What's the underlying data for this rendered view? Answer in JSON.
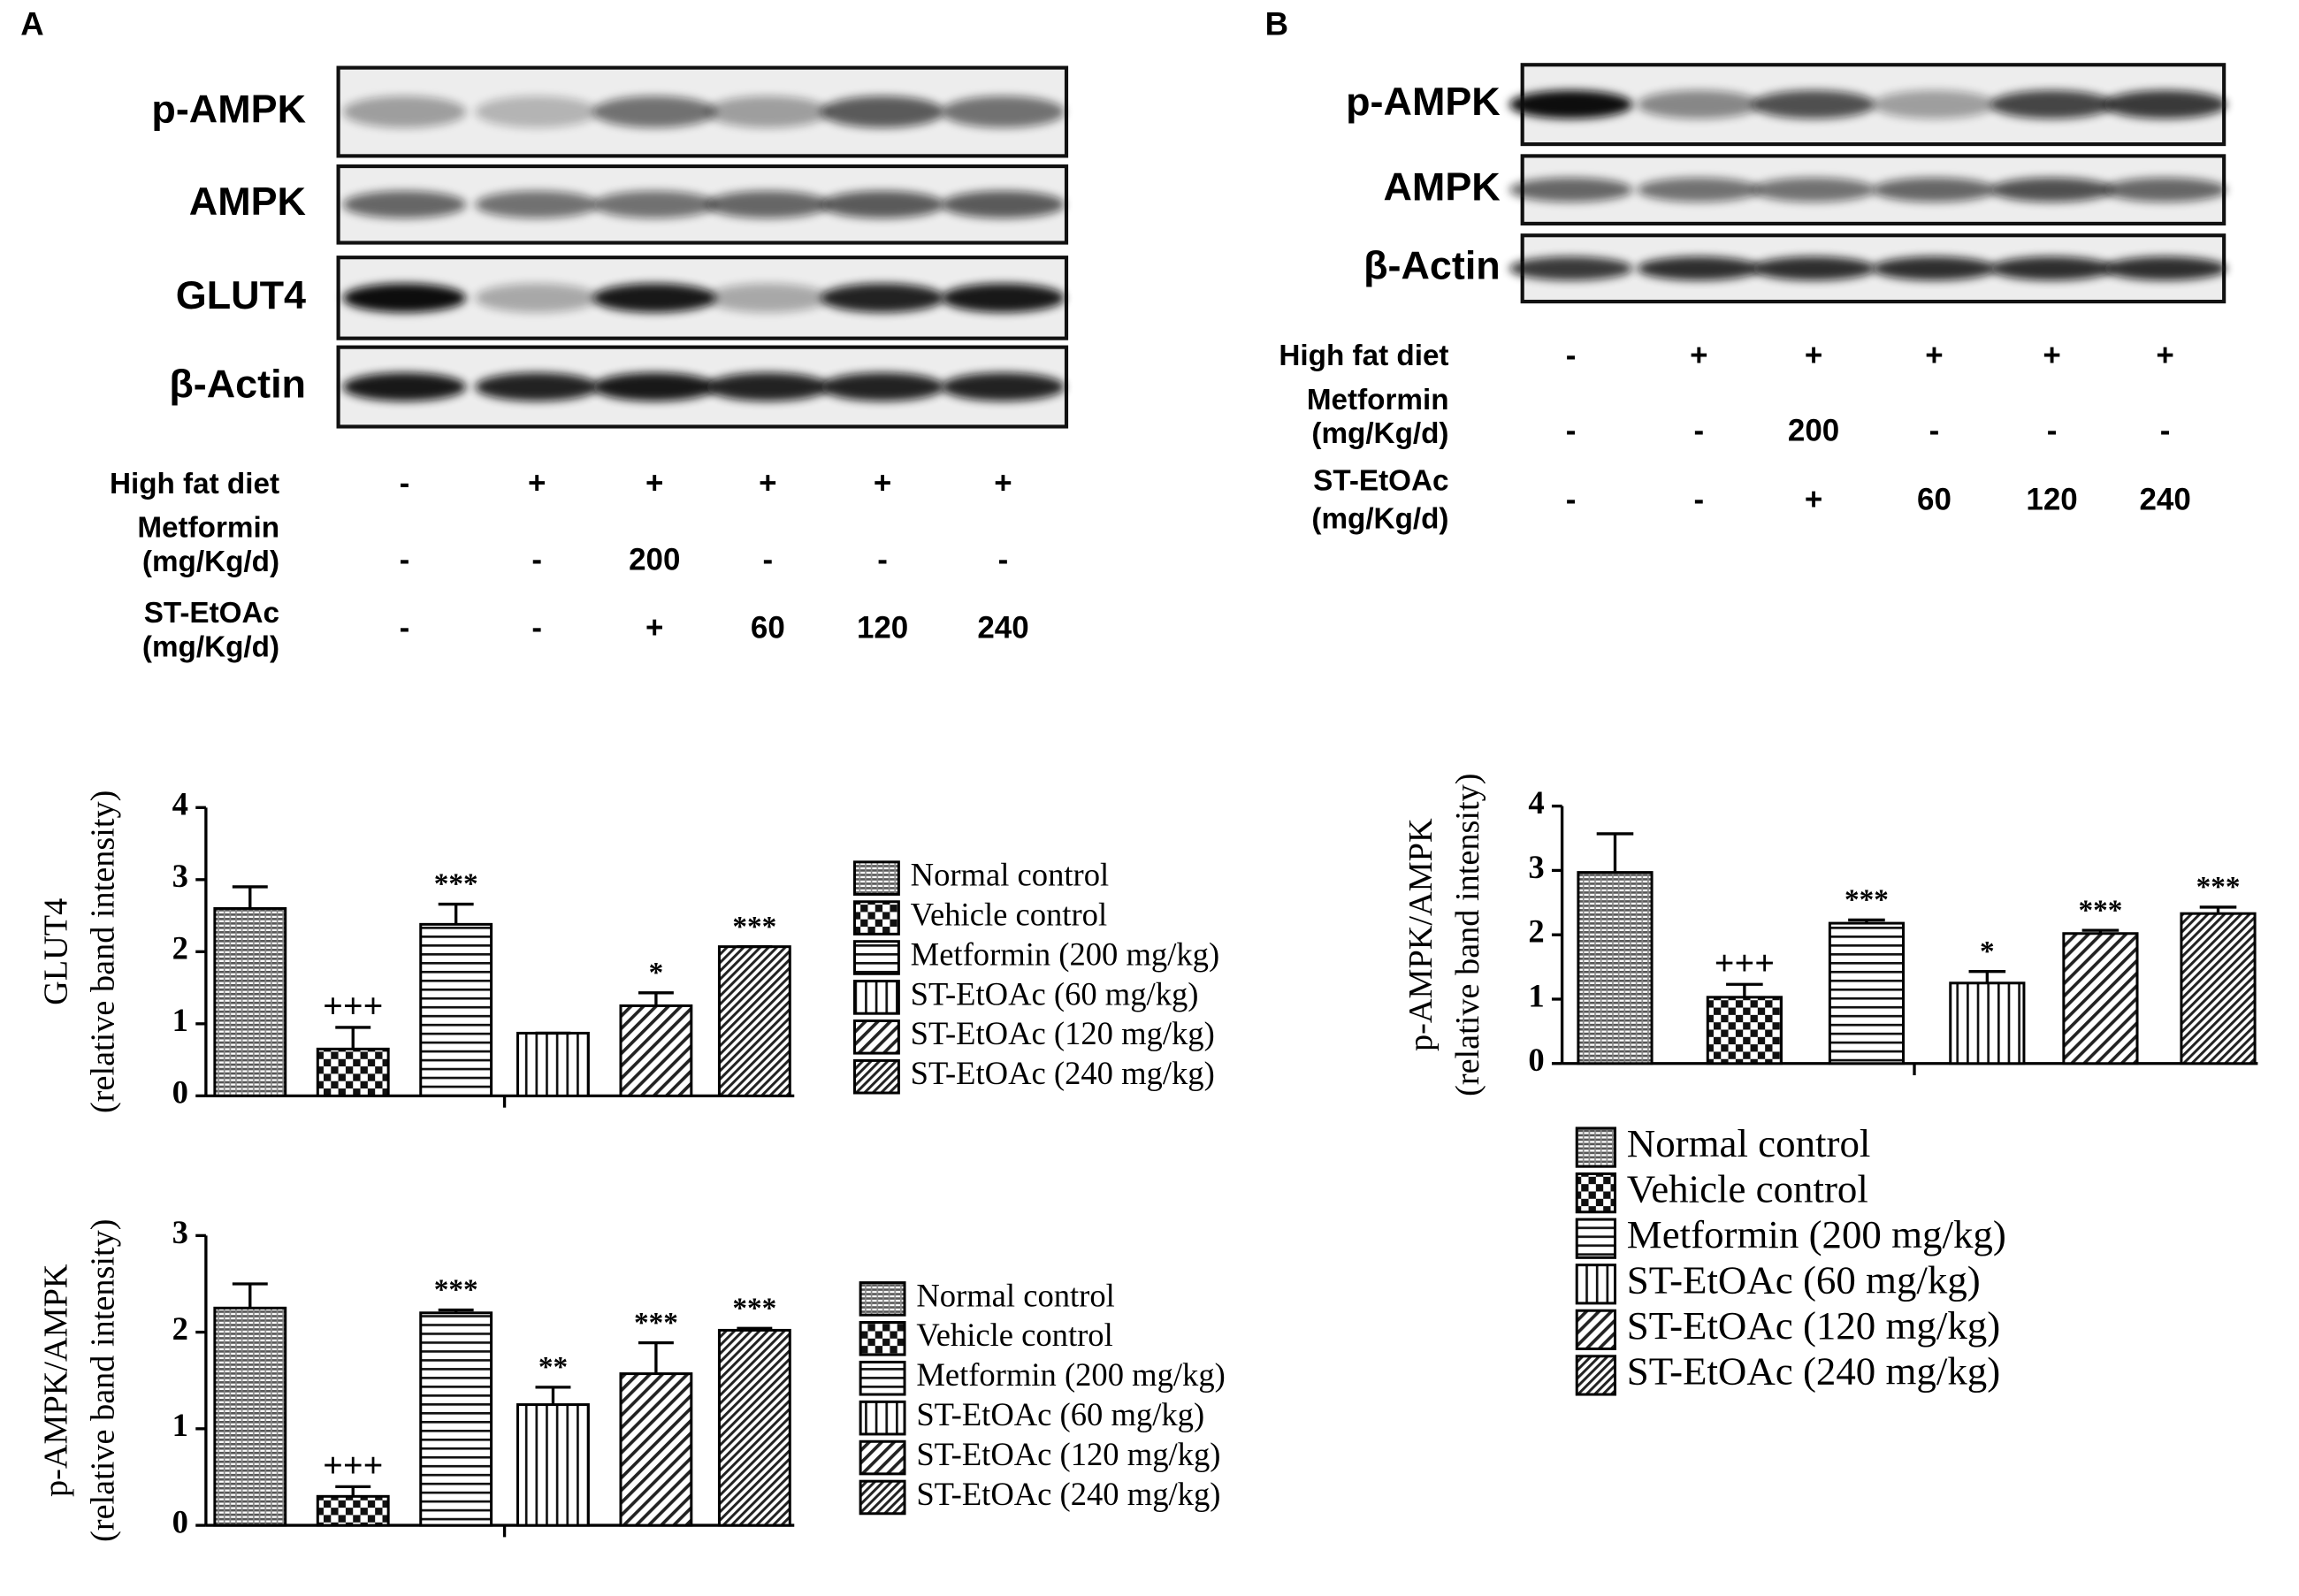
{
  "panel_labels": [
    "A",
    "B"
  ],
  "panel_a": {
    "blot_labels": [
      "p-AMPK",
      "AMPK",
      "GLUT4",
      "β-Actin"
    ],
    "treatments": [
      {
        "label": [
          "High fat diet"
        ],
        "cells": [
          "-",
          "+",
          "+",
          "+",
          "+",
          "+"
        ]
      },
      {
        "label": [
          "Metformin",
          "(mg/Kg/d)"
        ],
        "cells": [
          "-",
          "-",
          "200",
          "-",
          "-",
          "-"
        ]
      },
      {
        "label": [
          "ST-EtOAc",
          "(mg/Kg/d)"
        ],
        "cells": [
          "-",
          "-",
          "+",
          "60",
          "120",
          "240"
        ]
      }
    ]
  },
  "panel_b": {
    "blot_labels": [
      "p-AMPK",
      "AMPK",
      "β-Actin"
    ],
    "treatments": [
      {
        "label": [
          "High fat diet"
        ],
        "cells": [
          "-",
          "+",
          "+",
          "+",
          "+",
          "+"
        ]
      },
      {
        "label": [
          "Metformin",
          "(mg/Kg/d)"
        ],
        "cells": [
          "-",
          "-",
          "200",
          "-",
          "-",
          "-"
        ]
      },
      {
        "label": [
          "ST-EtOAc",
          "(mg/Kg/d)"
        ],
        "cells": [
          "-",
          "-",
          "+",
          "60",
          "120",
          "240"
        ]
      }
    ]
  },
  "chart_data": [
    {
      "type": "bar",
      "ylabel": [
        "GLUT4",
        "(relative band intensity)"
      ],
      "categories": [
        "Normal control",
        "Vehicle control",
        "Metformin (200 mg/kg)",
        "ST-EtOAc (60 mg/kg)",
        "ST-EtOAc (120 mg/kg)",
        "ST-EtOAc (240 mg/kg)"
      ],
      "values": [
        2.6,
        0.65,
        2.38,
        0.87,
        1.25,
        2.07
      ],
      "errors": [
        0.3,
        0.3,
        0.28,
        0,
        0.18,
        0
      ],
      "annotations": [
        null,
        "+++",
        "***",
        null,
        "*",
        "***"
      ],
      "patterns": [
        "dense",
        "checker",
        "horizontal",
        "vertical",
        "diagonal",
        "diagonal-dense"
      ],
      "ylim": [
        0,
        4
      ],
      "yticks": [
        0,
        1,
        2,
        3,
        4
      ],
      "legend": "right"
    },
    {
      "type": "bar",
      "ylabel": [
        "p-AMPK/AMPK",
        "(relative band intensity)"
      ],
      "categories": [
        "Normal control",
        "Vehicle control",
        "Metformin (200 mg/kg)",
        "ST-EtOAc (60 mg/kg)",
        "ST-EtOAc (120 mg/kg)",
        "ST-EtOAc (240 mg/kg)"
      ],
      "values": [
        2.25,
        0.3,
        2.2,
        1.25,
        1.57,
        2.02
      ],
      "errors": [
        0.25,
        0.1,
        0.03,
        0.18,
        0.32,
        0.02
      ],
      "annotations": [
        null,
        "+++",
        "***",
        "**",
        "***",
        "***"
      ],
      "patterns": [
        "dense",
        "checker",
        "horizontal",
        "vertical",
        "diagonal",
        "diagonal-dense"
      ],
      "ylim": [
        0,
        3
      ],
      "yticks": [
        0,
        1,
        2,
        3
      ],
      "legend": "right"
    },
    {
      "type": "bar",
      "ylabel": [
        "p-AMPK/AMPK",
        "(relative band intensity)"
      ],
      "categories": [
        "Normal control",
        "Vehicle control",
        "Metformin (200 mg/kg)",
        "ST-EtOAc (60 mg/kg)",
        "ST-EtOAc (120 mg/kg)",
        "ST-EtOAc (240 mg/kg)"
      ],
      "values": [
        2.97,
        1.03,
        2.18,
        1.25,
        2.02,
        2.33
      ],
      "errors": [
        0.6,
        0.2,
        0.05,
        0.18,
        0.05,
        0.1
      ],
      "annotations": [
        null,
        "+++",
        "***",
        "*",
        "***",
        "***"
      ],
      "patterns": [
        "dense",
        "checker",
        "horizontal",
        "vertical",
        "diagonal",
        "diagonal-dense"
      ],
      "ylim": [
        0,
        4
      ],
      "yticks": [
        0,
        1,
        2,
        3,
        4
      ],
      "legend": "bottom"
    }
  ]
}
